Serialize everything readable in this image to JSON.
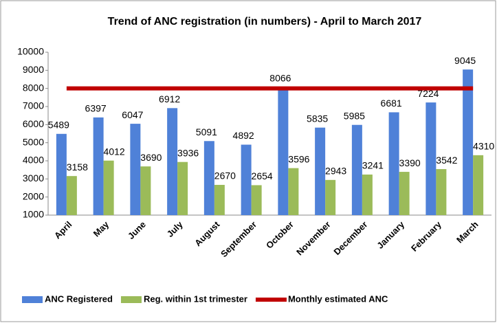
{
  "chart_data": {
    "type": "bar",
    "title": "Trend of ANC registration (in numbers) - April to March 2017",
    "categories": [
      "April",
      "May",
      "June",
      "July",
      "August",
      "September",
      "October",
      "November",
      "December",
      "January",
      "February",
      "March"
    ],
    "series": [
      {
        "name": "ANC Registered",
        "color": "#4f81d8",
        "values": [
          5489,
          6397,
          6047,
          6912,
          5091,
          4892,
          8066,
          5835,
          5985,
          6681,
          7224,
          9045
        ]
      },
      {
        "name": "Reg. within 1st trimester",
        "color": "#9bbb59",
        "values": [
          3158,
          4012,
          3690,
          3936,
          2670,
          2654,
          3596,
          2943,
          3241,
          3390,
          3542,
          4310
        ]
      },
      {
        "name": "Monthly estimated ANC",
        "color": "#c00000",
        "type": "line",
        "values": [
          8000,
          8000,
          8000,
          8000,
          8000,
          8000,
          8000,
          8000,
          8000,
          8000,
          8000,
          8000
        ]
      }
    ],
    "ylim": [
      1000,
      10000
    ],
    "yticks": [
      1000,
      2000,
      3000,
      4000,
      5000,
      6000,
      7000,
      8000,
      9000,
      10000
    ],
    "legend": "bottom"
  }
}
